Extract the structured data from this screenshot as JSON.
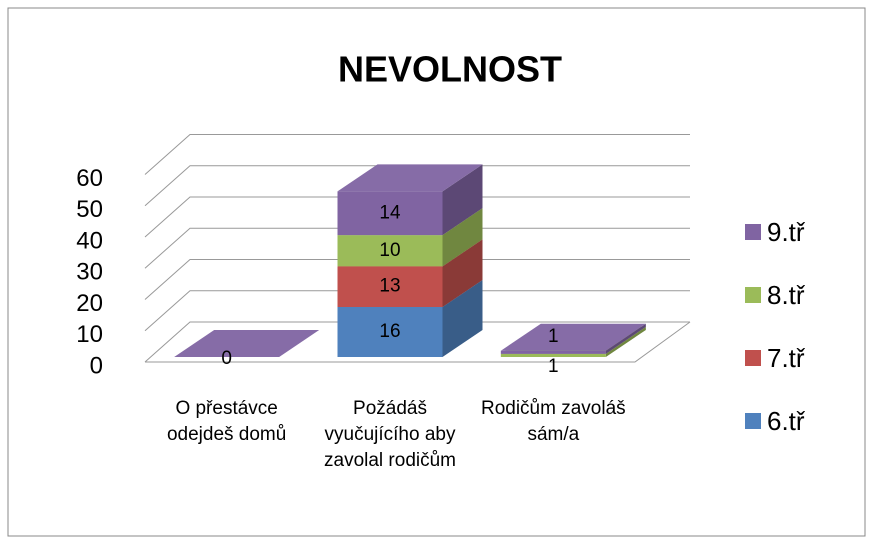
{
  "chart_data": {
    "type": "bar3d_stacked",
    "title": "NEVOLNOST",
    "categories": [
      "O přestávce odejdeš domů",
      "Požádáš vyučujícího aby zavolal rodičům",
      "Rodičům zavoláš sám/a"
    ],
    "series": [
      {
        "name": "6.tř",
        "color": "#4f81bd",
        "values": [
          null,
          16,
          null
        ]
      },
      {
        "name": "7.tř",
        "color": "#c0504d",
        "values": [
          null,
          13,
          null
        ]
      },
      {
        "name": "8.tř",
        "color": "#9bbb59",
        "values": [
          null,
          10,
          1
        ]
      },
      {
        "name": "9.tř",
        "color": "#8064a2",
        "values": [
          0,
          14,
          1
        ]
      }
    ],
    "ylim": [
      0,
      60
    ],
    "yticks": [
      0,
      10,
      20,
      30,
      40,
      50,
      60
    ],
    "grid": true,
    "legend": "right"
  }
}
